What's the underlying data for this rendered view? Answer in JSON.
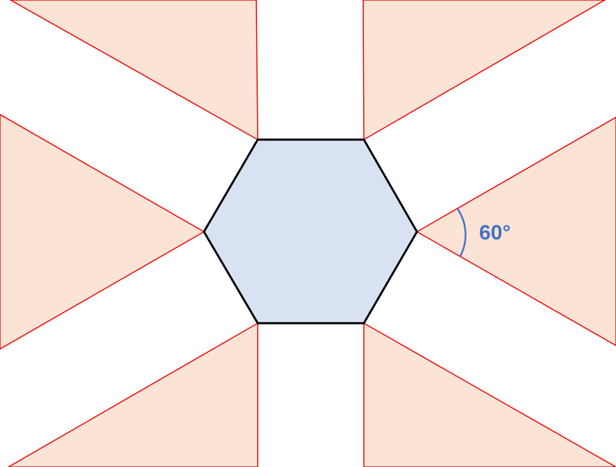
{
  "angle_label": "60°",
  "colors": {
    "background": "#ffffff",
    "wedge_fill": "#fbe4d6",
    "wedge_stroke": "#ee0000",
    "hexagon_fill": "#d9e2f3",
    "hexagon_stroke": "#000000",
    "angle_annotation": "#4472c4"
  }
}
